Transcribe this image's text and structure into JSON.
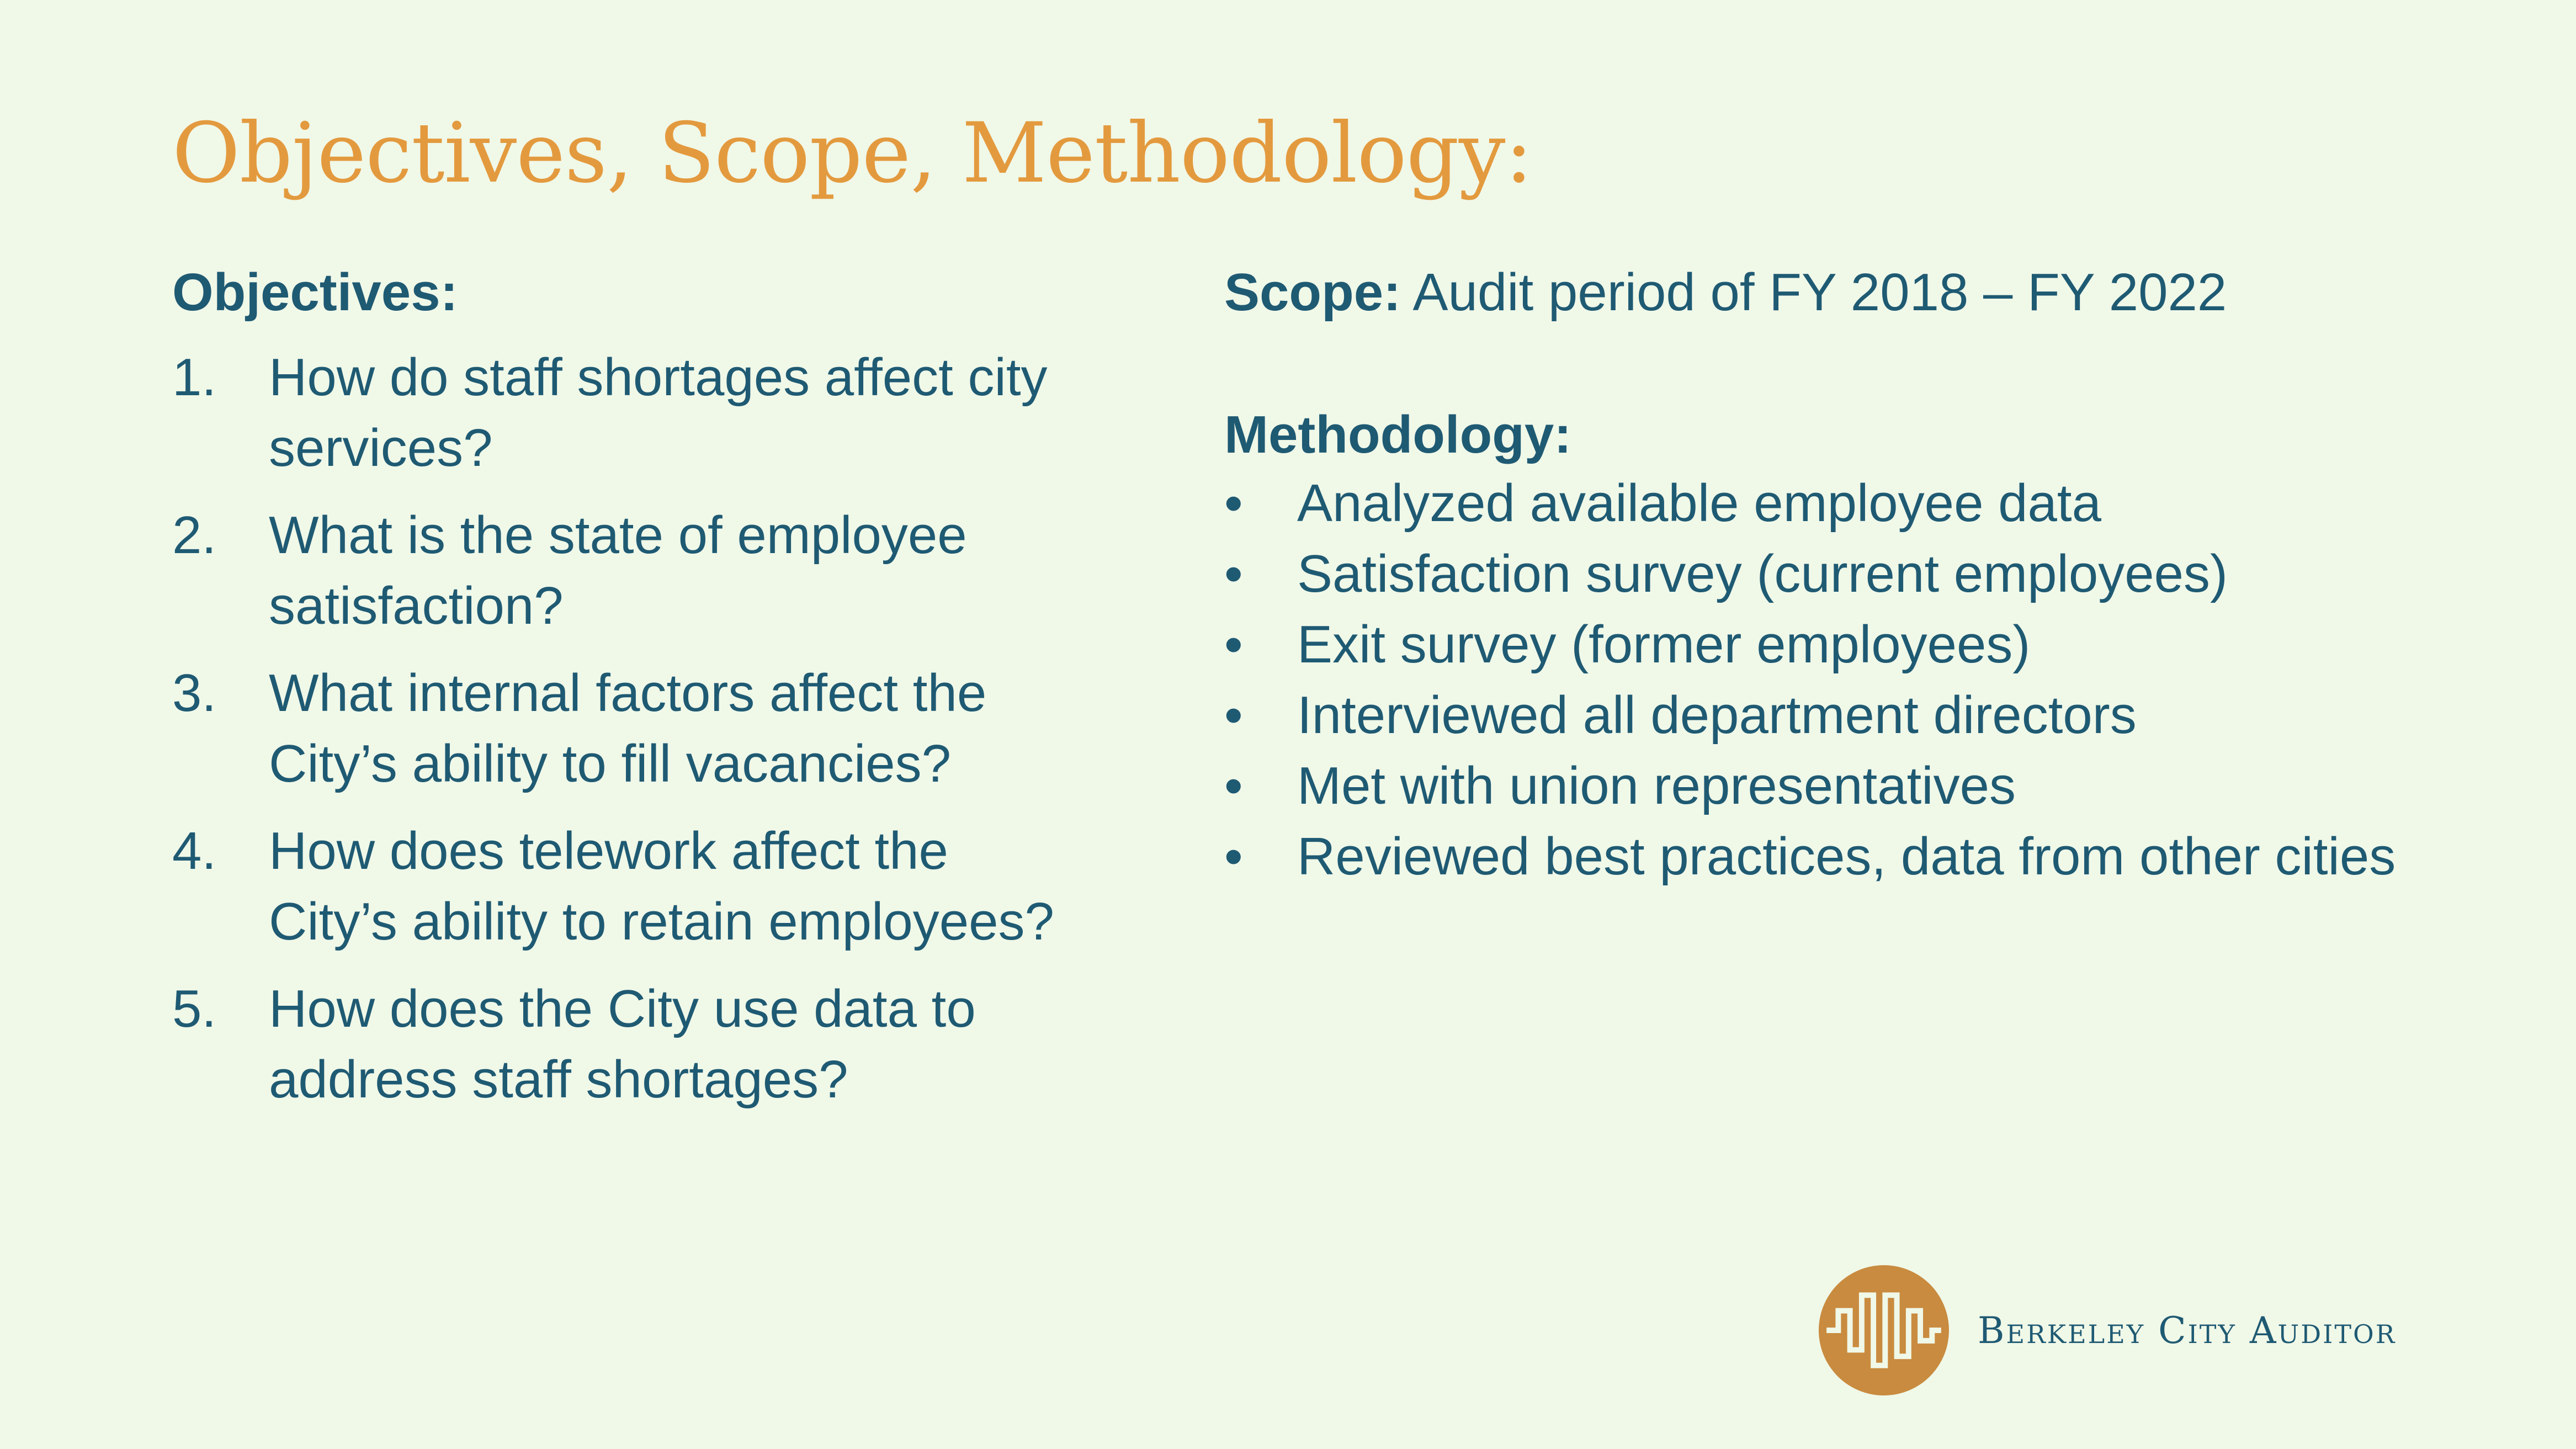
{
  "title": "Objectives, Scope, Methodology:",
  "objectives": {
    "heading": "Objectives:",
    "items": [
      {
        "num": "1.",
        "text": "How do staff shortages affect city services?"
      },
      {
        "num": "2.",
        "text": "What is the state of employee satisfaction?"
      },
      {
        "num": "3.",
        "text": "What internal factors affect the City’s ability to fill vacancies?"
      },
      {
        "num": "4.",
        "text": "How does telework affect the City’s ability to retain employees?"
      },
      {
        "num": "5.",
        "text": "How does the City use data to address staff shortages?"
      }
    ]
  },
  "scope": {
    "label": "Scope:",
    "text": "Audit period of FY 2018 – FY 2022"
  },
  "methodology": {
    "heading": "Methodology:",
    "bullet": "•",
    "items": [
      "Analyzed available employee data",
      "Satisfaction survey (current employees)",
      "Exit survey (former employees)",
      "Interviewed all department directors",
      "Met with union representatives",
      "Reviewed best practices, data from other cities"
    ]
  },
  "logo": {
    "text": "Berkeley City Auditor",
    "icon": "waveform-circle-icon",
    "color": "#c98b3f"
  },
  "colors": {
    "background": "#f0f8e8",
    "title": "#e39a3e",
    "text": "#1f5a73"
  }
}
